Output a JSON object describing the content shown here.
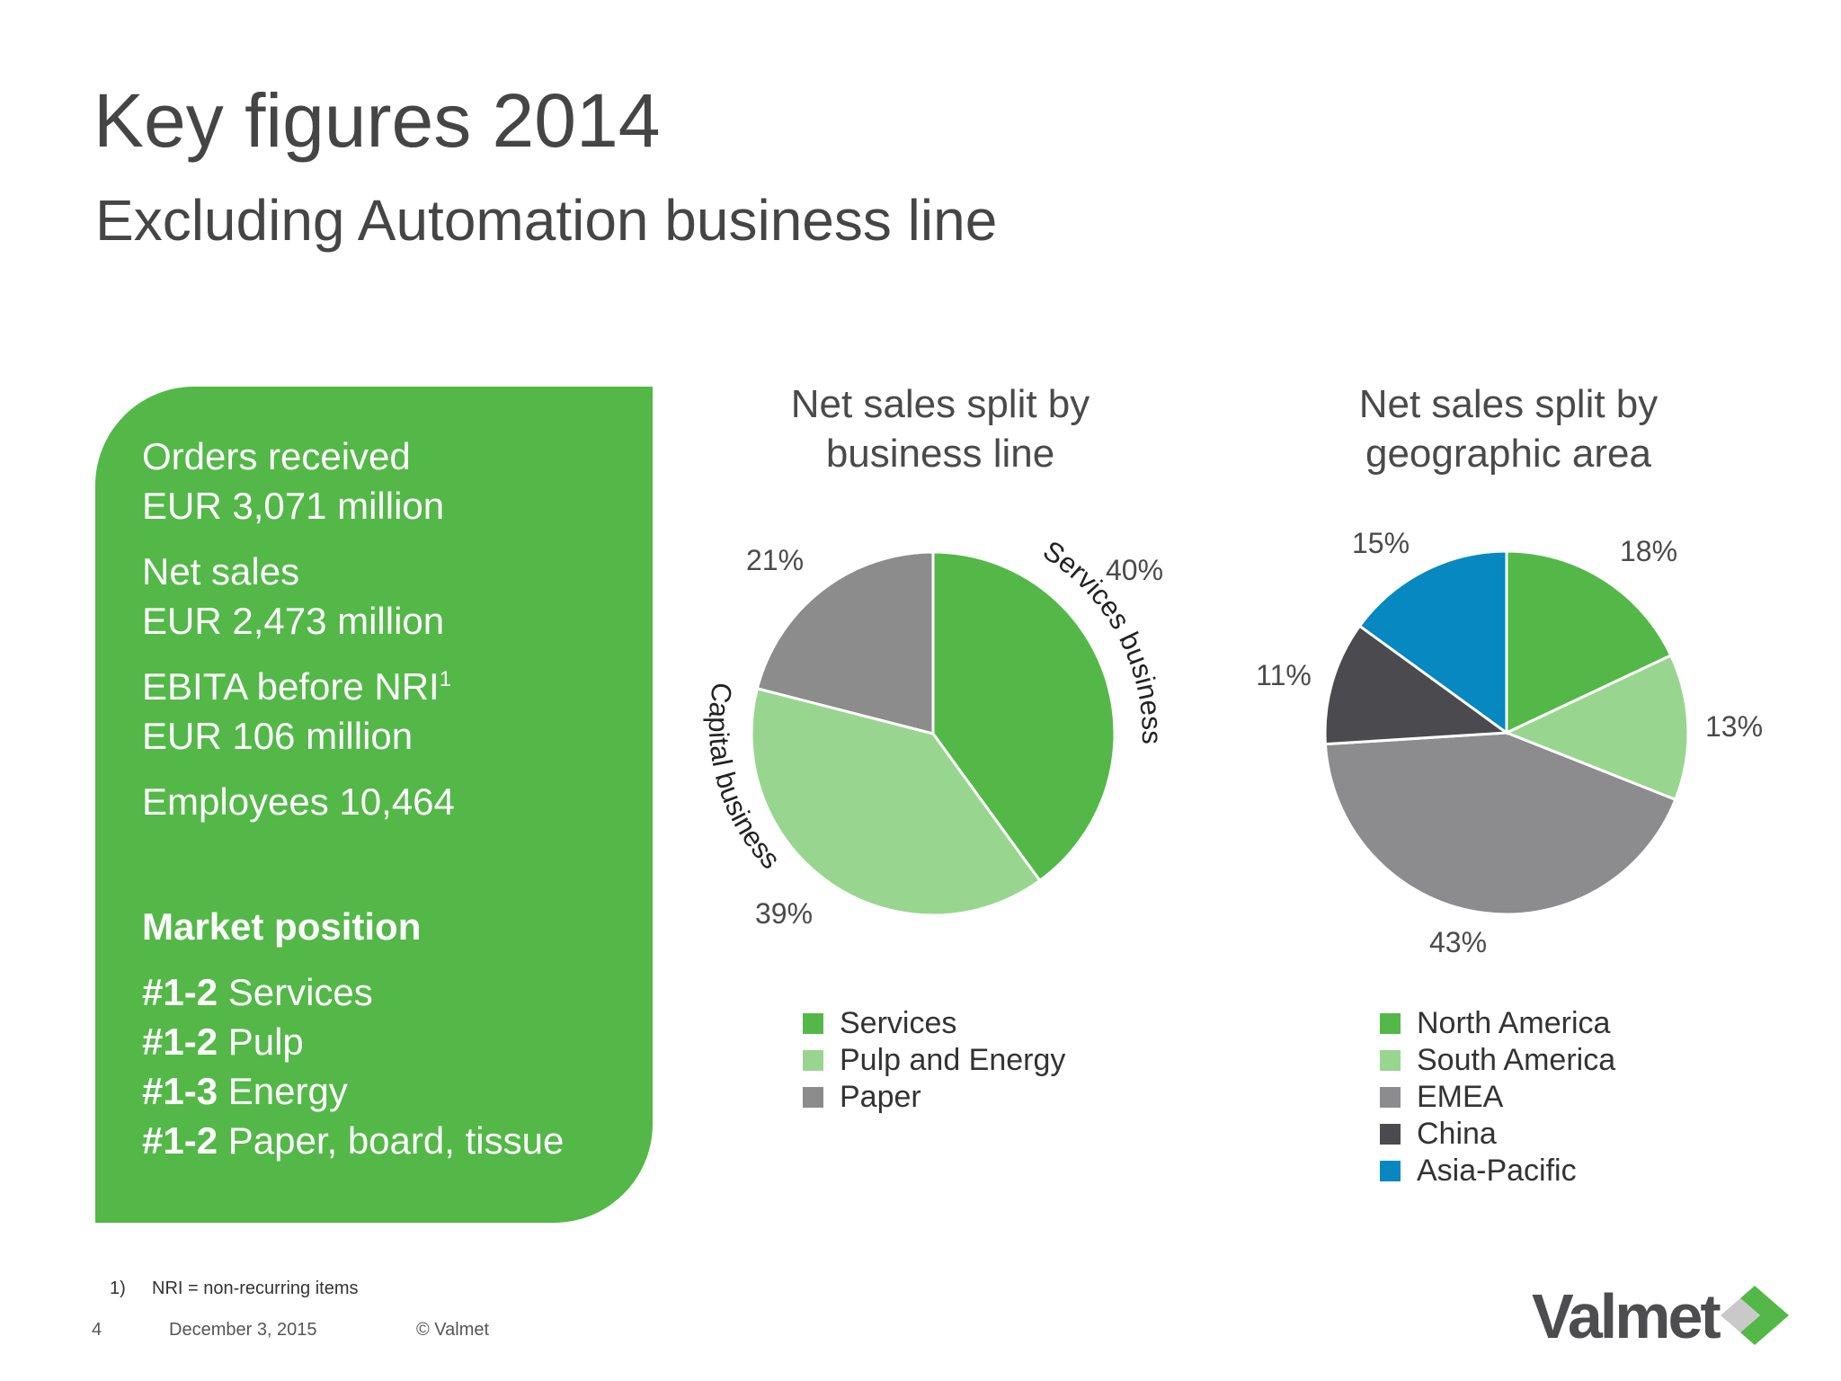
{
  "header": {
    "title": "Key figures 2014",
    "subtitle": "Excluding Automation business line"
  },
  "kpi_panel": {
    "orders_label": "Orders received",
    "orders_value": "EUR 3,071 million",
    "net_sales_label": "Net sales",
    "net_sales_value": "EUR 2,473 million",
    "ebita_label": "EBITA before NRI",
    "ebita_sup": "1",
    "ebita_value": "EUR 106 million",
    "employees": "Employees 10,464",
    "market_position_heading": "Market position",
    "market_positions": [
      {
        "rank": "#1-2",
        "segment": " Services"
      },
      {
        "rank": "#1-2",
        "segment": " Pulp"
      },
      {
        "rank": "#1-3",
        "segment": " Energy"
      },
      {
        "rank": "#1-2",
        "segment": " Paper, board, tissue"
      }
    ],
    "color": "#53b848"
  },
  "chart_data": [
    {
      "type": "pie",
      "title": "Net sales split by business line",
      "title_lines": [
        "Net sales split by",
        "business line"
      ],
      "categories": [
        "Services",
        "Pulp and Energy",
        "Paper"
      ],
      "values": [
        40,
        39,
        21
      ],
      "labels": [
        "40%",
        "39%",
        "21%"
      ],
      "colors": [
        "#53b848",
        "#98d68f",
        "#8c8c8c"
      ],
      "annotations": [
        "Services business",
        "Capital business"
      ],
      "legend": "bottom"
    },
    {
      "type": "pie",
      "title": "Net sales split by geographic area",
      "title_lines": [
        "Net sales split by",
        "geographic area"
      ],
      "categories": [
        "North America",
        "South America",
        "EMEA",
        "China",
        "Asia-Pacific"
      ],
      "values": [
        18,
        13,
        43,
        11,
        15
      ],
      "labels": [
        "18%",
        "13%",
        "43%",
        "11%",
        "15%"
      ],
      "colors": [
        "#53b848",
        "#98d68f",
        "#8c8c8e",
        "#4b4b4f",
        "#0788c0"
      ],
      "legend": "bottom"
    }
  ],
  "footer": {
    "footnote_num": "1)",
    "footnote_text": "NRI = non-recurring items",
    "page_number": "4",
    "date": "December 3, 2015",
    "copyright": "© Valmet",
    "logo_text": "Valmet"
  }
}
